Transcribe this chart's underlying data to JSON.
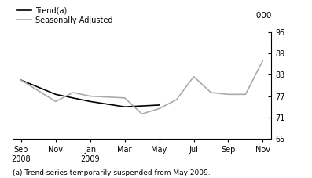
{
  "x_labels": [
    "Sep\n2008",
    "Nov",
    "Jan\n2009",
    "Mar",
    "May",
    "Jul",
    "Sep",
    "Nov"
  ],
  "x_positions": [
    0,
    2,
    4,
    6,
    8,
    10,
    12,
    14
  ],
  "trend_x": [
    0,
    2,
    4,
    6,
    8
  ],
  "trend_y": [
    81.5,
    77.5,
    75.5,
    74.0,
    74.5
  ],
  "seasonal_x": [
    0,
    2,
    3,
    4,
    6,
    7,
    8,
    9,
    10,
    11,
    12,
    13,
    14
  ],
  "seasonal_y": [
    81.5,
    75.5,
    78.0,
    77.0,
    76.5,
    72.0,
    73.5,
    76.0,
    82.5,
    78.0,
    77.5,
    77.5,
    87.0
  ],
  "ylim": [
    65,
    95
  ],
  "yticks": [
    65,
    71,
    77,
    83,
    89,
    95
  ],
  "trend_color": "#000000",
  "seasonal_color": "#aaaaaa",
  "trend_label": "Trend(a)",
  "seasonal_label": "Seasonally Adjusted",
  "footnote": "(a) Trend series temporarily suspended from May 2009.",
  "line_width": 1.2
}
